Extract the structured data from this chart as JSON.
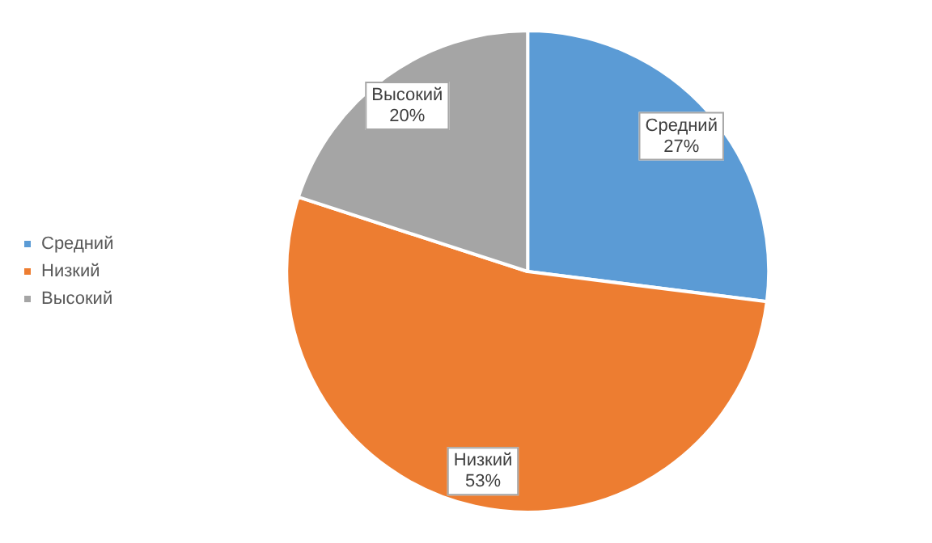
{
  "chart_data": {
    "type": "pie",
    "categories": [
      "Средний",
      "Низкий",
      "Высокий"
    ],
    "values": [
      27,
      53,
      20
    ],
    "colors": [
      "#5b9bd5",
      "#ed7d31",
      "#a5a5a5"
    ],
    "value_labels": [
      "27%",
      "53%",
      "20%"
    ],
    "legend": "left"
  }
}
